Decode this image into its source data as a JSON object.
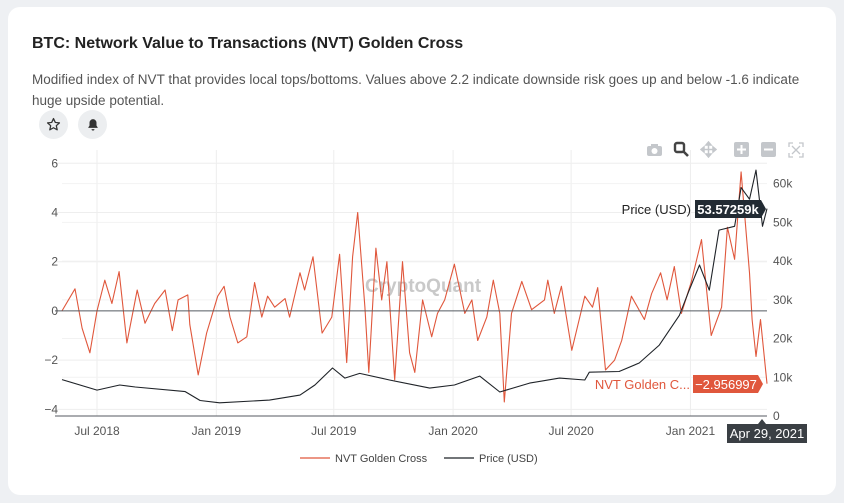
{
  "card": {
    "title": "BTC: Network Value to Transactions (NVT) Golden Cross",
    "description": "Modified index of NVT that provides local tops/bottoms. Values above 2.2 indicate downside risk goes up and below -1.6 indicate huge upside potential.",
    "actions": [
      {
        "icon": "star-icon"
      },
      {
        "icon": "bell-icon"
      }
    ]
  },
  "modebar": [
    "camera-icon",
    "zoom-icon",
    "pan-icon",
    "zoom-in-icon",
    "zoom-out-icon",
    "autoscale-icon"
  ],
  "watermark": "CryptoQuant",
  "hover": {
    "price_label": "Price (USD)",
    "price_value": "53.57259k",
    "nvt_label": "NVT Golden C...",
    "nvt_value": "−2.956997",
    "date": "Apr 29, 2021"
  },
  "colors": {
    "nvt": "#e0573c",
    "price": "#1f2328",
    "accent_hover_price": "#222b33",
    "hover_date": "#3a3f44"
  },
  "chart_data": {
    "type": "line",
    "xrange": [
      "2018-05-08",
      "2021-04-29"
    ],
    "xticks": [
      {
        "date": "2018-07-01",
        "label": "Jul 2018"
      },
      {
        "date": "2019-01-01",
        "label": "Jan 2019"
      },
      {
        "date": "2019-07-01",
        "label": "Jul 2019"
      },
      {
        "date": "2020-01-01",
        "label": "Jan 2020"
      },
      {
        "date": "2020-07-01",
        "label": "Jul 2020"
      },
      {
        "date": "2021-01-01",
        "label": "Jan 2021"
      }
    ],
    "y_left": {
      "range": [
        -4.27,
        6.54
      ],
      "ticks": [
        6,
        4,
        2,
        0,
        -2,
        -4
      ],
      "tick_labels": [
        "6",
        "4",
        "2",
        "0",
        "−2",
        "−4"
      ]
    },
    "y_right": {
      "range": [
        0,
        68.7
      ],
      "unit": "k",
      "ticks": [
        60,
        50,
        40,
        30,
        20,
        10,
        0
      ],
      "tick_labels": [
        "60k",
        "50k",
        "40k",
        "30k",
        "20k",
        "10k",
        "0"
      ]
    },
    "grid": true,
    "legend": "bottom",
    "series": [
      {
        "name": "NVT Golden Cross",
        "axis": "left",
        "color": "#e0573c",
        "points": [
          [
            "2018-05-08",
            0.0
          ],
          [
            "2018-05-28",
            0.9
          ],
          [
            "2018-06-08",
            -0.7
          ],
          [
            "2018-06-20",
            -1.7
          ],
          [
            "2018-07-01",
            0.0
          ],
          [
            "2018-07-13",
            1.25
          ],
          [
            "2018-07-24",
            0.3
          ],
          [
            "2018-08-04",
            1.6
          ],
          [
            "2018-08-16",
            -1.3
          ],
          [
            "2018-09-01",
            0.85
          ],
          [
            "2018-09-13",
            -0.5
          ],
          [
            "2018-09-28",
            0.3
          ],
          [
            "2018-10-14",
            0.85
          ],
          [
            "2018-10-25",
            -0.8
          ],
          [
            "2018-11-03",
            0.45
          ],
          [
            "2018-11-18",
            0.65
          ],
          [
            "2018-11-21",
            -0.55
          ],
          [
            "2018-12-04",
            -2.6
          ],
          [
            "2018-12-17",
            -0.9
          ],
          [
            "2019-01-03",
            0.6
          ],
          [
            "2019-01-13",
            1.0
          ],
          [
            "2019-01-22",
            -0.25
          ],
          [
            "2019-02-03",
            -1.3
          ],
          [
            "2019-02-17",
            -1.05
          ],
          [
            "2019-03-01",
            1.15
          ],
          [
            "2019-03-12",
            -0.25
          ],
          [
            "2019-03-21",
            0.6
          ],
          [
            "2019-04-01",
            0.15
          ],
          [
            "2019-04-17",
            0.5
          ],
          [
            "2019-04-24",
            -0.25
          ],
          [
            "2019-05-10",
            1.55
          ],
          [
            "2019-05-17",
            0.85
          ],
          [
            "2019-05-30",
            2.2
          ],
          [
            "2019-06-13",
            -0.9
          ],
          [
            "2019-06-28",
            -0.25
          ],
          [
            "2019-07-10",
            2.3
          ],
          [
            "2019-07-21",
            -2.1
          ],
          [
            "2019-07-30",
            2.2
          ],
          [
            "2019-08-07",
            4.0
          ],
          [
            "2019-08-18",
            0.15
          ],
          [
            "2019-08-24",
            -2.5
          ],
          [
            "2019-09-04",
            2.55
          ],
          [
            "2019-09-13",
            0.45
          ],
          [
            "2019-09-21",
            2.0
          ],
          [
            "2019-10-03",
            -2.8
          ],
          [
            "2019-10-15",
            2.0
          ],
          [
            "2019-10-26",
            -1.7
          ],
          [
            "2019-11-03",
            -2.5
          ],
          [
            "2019-11-15",
            0.45
          ],
          [
            "2019-11-29",
            -1.05
          ],
          [
            "2019-12-08",
            -0.1
          ],
          [
            "2019-12-19",
            0.45
          ],
          [
            "2020-01-03",
            1.9
          ],
          [
            "2020-01-19",
            -0.1
          ],
          [
            "2020-01-30",
            0.45
          ],
          [
            "2020-02-08",
            -1.2
          ],
          [
            "2020-02-22",
            -0.25
          ],
          [
            "2020-03-03",
            1.25
          ],
          [
            "2020-03-13",
            -0.1
          ],
          [
            "2020-03-20",
            -3.7
          ],
          [
            "2020-03-31",
            -0.1
          ],
          [
            "2020-04-16",
            1.2
          ],
          [
            "2020-05-01",
            0.05
          ],
          [
            "2020-05-21",
            0.45
          ],
          [
            "2020-05-26",
            1.25
          ],
          [
            "2020-06-05",
            -0.1
          ],
          [
            "2020-06-16",
            1.0
          ],
          [
            "2020-07-02",
            -1.6
          ],
          [
            "2020-07-22",
            0.6
          ],
          [
            "2020-08-03",
            0.15
          ],
          [
            "2020-08-11",
            0.95
          ],
          [
            "2020-08-23",
            -2.4
          ],
          [
            "2020-09-06",
            -2.0
          ],
          [
            "2020-09-17",
            -1.2
          ],
          [
            "2020-10-02",
            0.6
          ],
          [
            "2020-10-22",
            -0.35
          ],
          [
            "2020-11-02",
            0.7
          ],
          [
            "2020-11-16",
            1.55
          ],
          [
            "2020-11-26",
            0.45
          ],
          [
            "2020-12-07",
            1.8
          ],
          [
            "2020-12-18",
            -0.1
          ],
          [
            "2021-01-02",
            1.15
          ],
          [
            "2021-01-18",
            2.9
          ],
          [
            "2021-02-02",
            -1.0
          ],
          [
            "2021-02-18",
            0.15
          ],
          [
            "2021-02-27",
            3.4
          ],
          [
            "2021-03-10",
            2.1
          ],
          [
            "2021-03-20",
            5.65
          ],
          [
            "2021-04-02",
            1.55
          ],
          [
            "2021-04-06",
            -0.35
          ],
          [
            "2021-04-12",
            -1.85
          ],
          [
            "2021-04-19",
            -0.35
          ],
          [
            "2021-04-29",
            -2.956997
          ]
        ]
      },
      {
        "name": "Price (USD)",
        "axis": "right",
        "color": "#1f2328",
        "points": [
          [
            "2018-05-08",
            9.4
          ],
          [
            "2018-07-01",
            6.7
          ],
          [
            "2018-08-05",
            8.0
          ],
          [
            "2018-08-29",
            7.5
          ],
          [
            "2018-11-14",
            6.3
          ],
          [
            "2018-12-07",
            4.0
          ],
          [
            "2019-01-06",
            3.4
          ],
          [
            "2019-03-24",
            4.1
          ],
          [
            "2019-05-10",
            5.4
          ],
          [
            "2019-06-02",
            8.0
          ],
          [
            "2019-06-29",
            12.4
          ],
          [
            "2019-07-18",
            9.8
          ],
          [
            "2019-08-10",
            11.0
          ],
          [
            "2019-09-25",
            9.3
          ],
          [
            "2019-11-26",
            7.2
          ],
          [
            "2020-01-03",
            8.0
          ],
          [
            "2020-02-11",
            10.3
          ],
          [
            "2020-03-13",
            6.2
          ],
          [
            "2020-04-28",
            8.5
          ],
          [
            "2020-06-13",
            9.8
          ],
          [
            "2020-07-22",
            9.3
          ],
          [
            "2020-07-29",
            11.3
          ],
          [
            "2020-09-13",
            11.5
          ],
          [
            "2020-10-14",
            13.7
          ],
          [
            "2020-11-14",
            18.3
          ],
          [
            "2020-12-15",
            26
          ],
          [
            "2020-12-30",
            32.5
          ],
          [
            "2021-01-15",
            39
          ],
          [
            "2021-01-30",
            32.5
          ],
          [
            "2021-02-14",
            48
          ],
          [
            "2021-03-10",
            49
          ],
          [
            "2021-03-20",
            59
          ],
          [
            "2021-04-02",
            56
          ],
          [
            "2021-04-12",
            63.5
          ],
          [
            "2021-04-22",
            49
          ],
          [
            "2021-04-29",
            53.57259
          ]
        ]
      }
    ]
  }
}
